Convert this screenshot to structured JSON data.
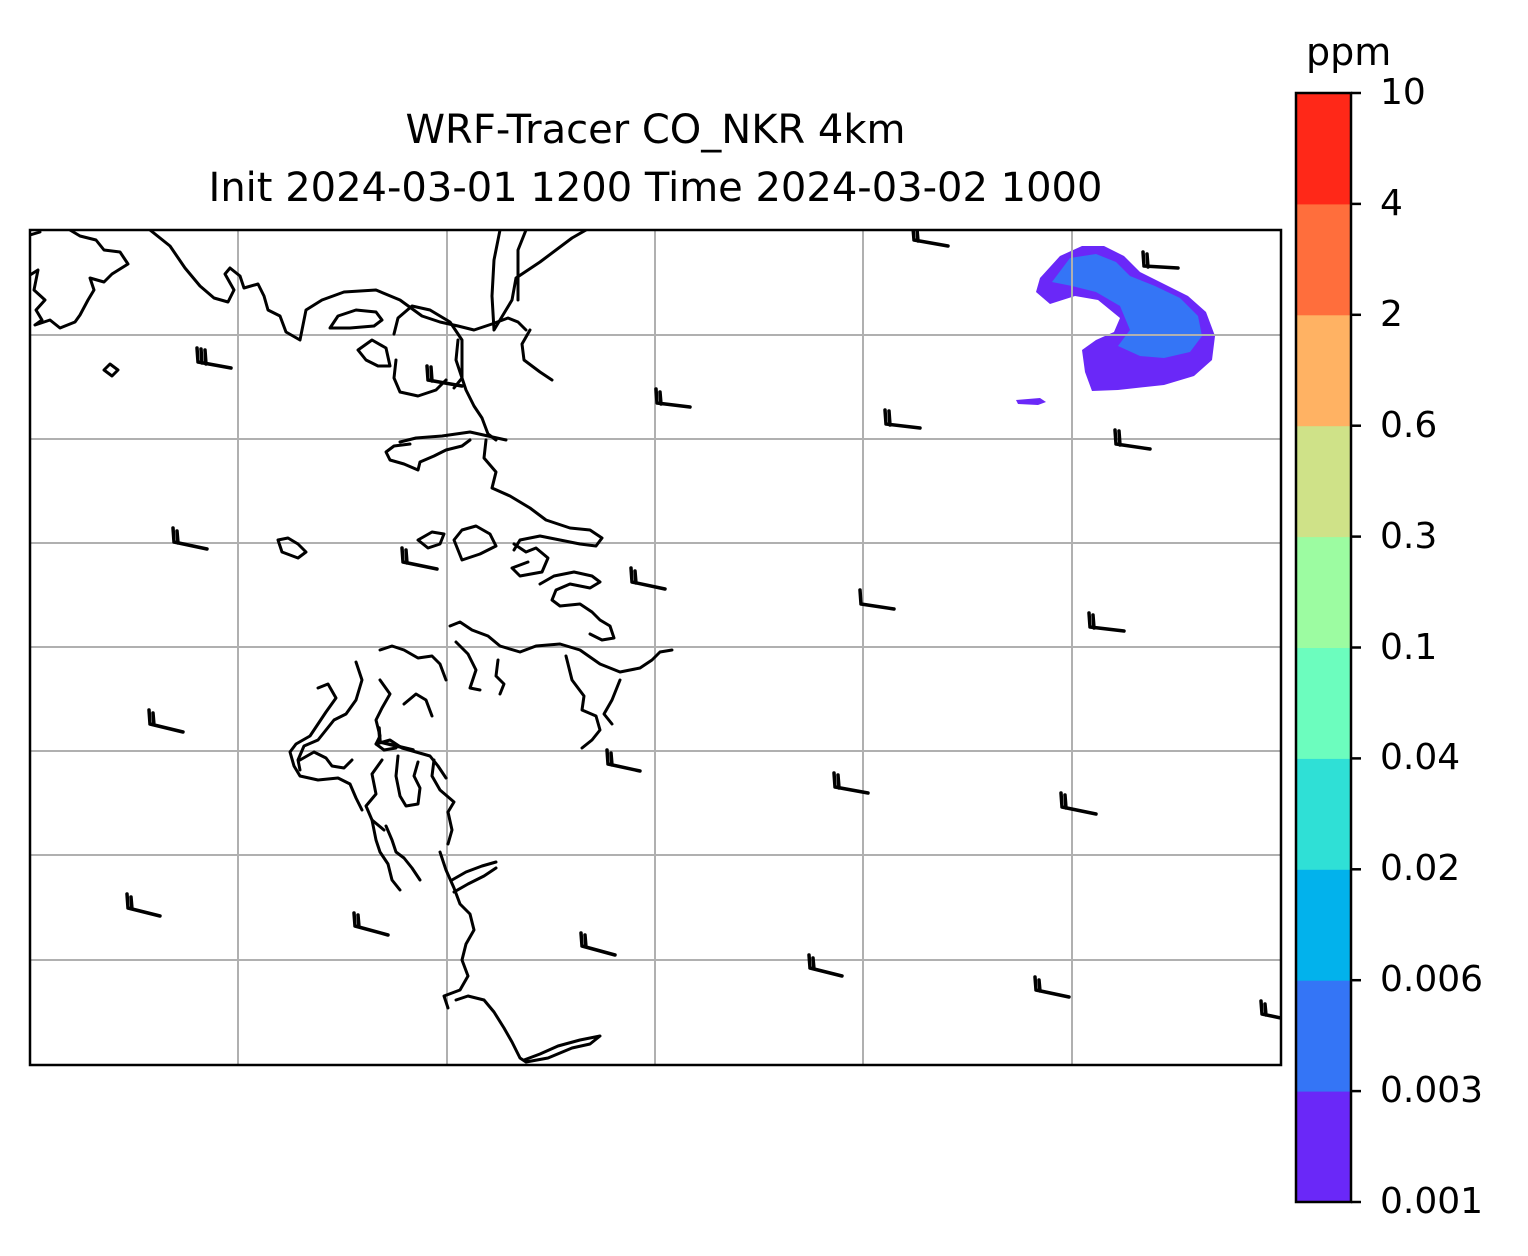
{
  "map": {
    "title_line1": "WRF-Tracer CO_NKR 4km",
    "title_line2": "Init 2024-03-01 1200 Time 2024-03-02 1000",
    "grid": true,
    "basemap": "coastlines",
    "overlay": "wind-barbs",
    "colorbar": {
      "units": "ppm",
      "levels": [
        "0.001",
        "0.003",
        "0.006",
        "0.02",
        "0.04",
        "0.1",
        "0.3",
        "0.6",
        "2",
        "4",
        "10"
      ],
      "colors": [
        "#6a28f8",
        "#3475f6",
        "#02b2ec",
        "#2fe0d6",
        "#6cfdbe",
        "#9cfca1",
        "#cfe288",
        "#ffb263",
        "#ff6e3c",
        "#ff2818"
      ]
    },
    "plume": {
      "color_outer": "#6a28f8",
      "color_inner": "#3475f6",
      "max_level": "0.006"
    }
  }
}
